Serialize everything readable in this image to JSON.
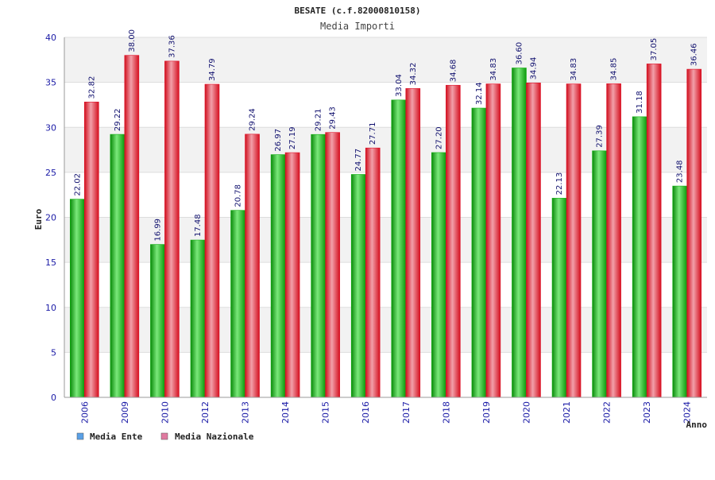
{
  "colors": {
    "ente": "#10b010",
    "nazionale": "#e01028",
    "legend_ente": "#5aa0e6",
    "legend_nazionale": "#e07aa0",
    "band": "#f2f2f2",
    "axis_text": "#1a1aa6",
    "value_text": "#10106e"
  },
  "chart_data": {
    "type": "bar",
    "title": "BESATE (c.f.82000810158)",
    "subtitle": "Media Importi",
    "xlabel": "Anno",
    "ylabel": "Euro",
    "ylim": [
      0,
      40
    ],
    "yticks": [
      "0",
      "5",
      "10",
      "15",
      "20",
      "25",
      "30",
      "35",
      "40"
    ],
    "categories": [
      "2006",
      "2009",
      "2010",
      "2012",
      "2013",
      "2014",
      "2015",
      "2016",
      "2017",
      "2018",
      "2019",
      "2020",
      "2021",
      "2022",
      "2023",
      "2024"
    ],
    "series": [
      {
        "name": "Media Ente",
        "values": [
          22.02,
          29.22,
          16.99,
          17.48,
          20.78,
          26.97,
          29.21,
          24.77,
          33.04,
          27.2,
          32.14,
          36.6,
          22.13,
          27.39,
          31.18,
          23.48
        ],
        "labels": [
          "22.02",
          "29.22",
          "16.99",
          "17.48",
          "20.78",
          "26.97",
          "29.21",
          "24.77",
          "33.04",
          "27.20",
          "32.14",
          "36.60",
          "22.13",
          "27.39",
          "31.18",
          "23.48"
        ]
      },
      {
        "name": "Media Nazionale",
        "values": [
          32.82,
          38.0,
          37.36,
          34.79,
          29.24,
          27.19,
          29.43,
          27.71,
          34.32,
          34.68,
          34.83,
          34.94,
          34.83,
          34.85,
          37.05,
          36.46
        ],
        "labels": [
          "32.82",
          "38.00",
          "37.36",
          "34.79",
          "29.24",
          "27.19",
          "29.43",
          "27.71",
          "34.32",
          "34.68",
          "34.83",
          "34.94",
          "34.83",
          "34.85",
          "37.05",
          "36.46"
        ]
      }
    ],
    "legend": [
      "Media Ente",
      "Media Nazionale"
    ],
    "legend_position": "bottom-left",
    "grid": true
  }
}
